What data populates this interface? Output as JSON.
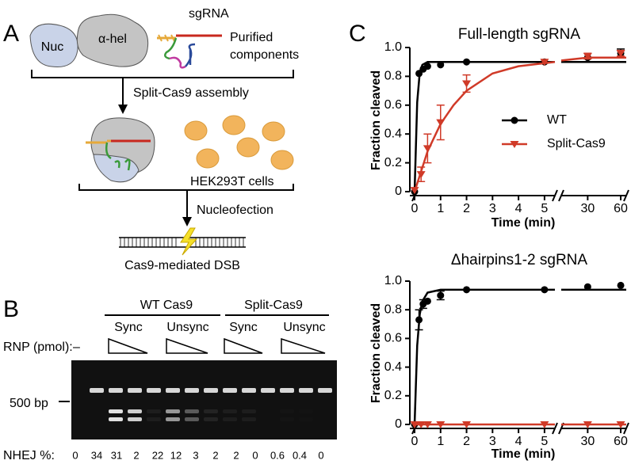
{
  "panel_a": {
    "label": "A",
    "nuc": "Nuc",
    "alpha_hel": "α-hel",
    "sgrna": "sgRNA",
    "purified": [
      "Purified",
      "components"
    ],
    "assembly": "Split-Cas9 assembly",
    "cells": "HEK293T cells",
    "nucleofection": "Nucleofection",
    "dsb": "Cas9-mediated DSB"
  },
  "panel_b": {
    "label": "B",
    "groups": [
      "WT Cas9",
      "Split-Cas9"
    ],
    "subgroups": [
      "Sync",
      "Unsync",
      "Sync",
      "Unsync"
    ],
    "rnp_label": "RNP (pmol):",
    "minus": "–",
    "marker": "500 bp",
    "nhej_label": "NHEJ %:",
    "nhej": [
      0,
      34,
      31,
      2,
      22,
      12,
      3,
      2,
      2,
      0,
      0.6,
      0.4,
      0
    ]
  },
  "panel_c_label": "C",
  "chart_data": [
    {
      "type": "scatter",
      "title": "Full-length sgRNA",
      "x_label": "Time (min)",
      "y_label": "Fraction cleaved",
      "xlim": [
        [
          0,
          5.4
        ],
        [
          6,
          65
        ]
      ],
      "xticks": [
        0,
        1,
        2,
        3,
        4,
        5,
        30,
        60
      ],
      "ylim": [
        0,
        1
      ],
      "yticks": [
        0,
        0.2,
        0.4,
        0.6,
        0.8,
        {
          "value": 1,
          "label": "1.0"
        }
      ],
      "legend": "right",
      "series": [
        {
          "name": "WT",
          "color": "#000000",
          "marker": "circle",
          "x": [
            0,
            0.17,
            0.33,
            0.5,
            1,
            2,
            5,
            30,
            60
          ],
          "values": [
            0,
            0.82,
            0.85,
            0.87,
            0.88,
            0.9,
            0.9,
            0.93,
            0.96
          ],
          "errors": [
            null,
            null,
            null,
            null,
            null,
            null,
            null,
            null,
            0.03
          ],
          "fit_x": [
            0,
            0.1,
            0.2,
            0.3,
            0.5,
            1,
            5.4,
            6,
            65
          ],
          "fit_values": [
            0,
            0.62,
            0.83,
            0.88,
            0.9,
            0.9,
            0.9,
            0.9,
            0.9
          ]
        },
        {
          "name": "Split-Cas9",
          "color": "#d03a28",
          "marker": "triangle-down",
          "x": [
            0,
            0.25,
            0.5,
            1,
            2,
            5,
            30,
            60
          ],
          "values": [
            0.01,
            0.12,
            0.3,
            0.48,
            0.75,
            0.9,
            0.94,
            0.96
          ],
          "errors": [
            null,
            0.05,
            0.1,
            0.12,
            0.06,
            null,
            0.02,
            0.02
          ],
          "fit_x": [
            0,
            0.5,
            1,
            1.5,
            2,
            3,
            4,
            5.4,
            6,
            30,
            65
          ],
          "fit_values": [
            0,
            0.28,
            0.47,
            0.6,
            0.7,
            0.82,
            0.87,
            0.9,
            0.91,
            0.93,
            0.93
          ]
        }
      ]
    },
    {
      "type": "scatter",
      "title": "Δhairpins1-2 sgRNA",
      "x_label": "Time (min)",
      "y_label": "Fraction cleaved",
      "xlim": [
        [
          0,
          5.4
        ],
        [
          6,
          65
        ]
      ],
      "xticks": [
        0,
        1,
        2,
        3,
        4,
        5,
        30,
        60
      ],
      "ylim": [
        0,
        1
      ],
      "yticks": [
        0,
        0.2,
        0.4,
        0.6,
        0.8,
        {
          "value": 1,
          "label": "1.0"
        }
      ],
      "series": [
        {
          "color": "#000000",
          "marker": "circle",
          "x": [
            0,
            0.17,
            0.33,
            0.5,
            1,
            2,
            5,
            30,
            60
          ],
          "values": [
            0,
            0.73,
            0.84,
            0.86,
            0.9,
            0.94,
            0.94,
            0.96,
            0.97
          ],
          "errors": [
            null,
            0.07,
            0.03,
            null,
            0.03,
            null,
            null,
            null,
            null
          ],
          "fit_x": [
            0,
            0.1,
            0.2,
            0.3,
            0.5,
            1,
            2,
            5.4,
            6,
            65
          ],
          "fit_values": [
            0,
            0.55,
            0.77,
            0.86,
            0.92,
            0.94,
            0.94,
            0.94,
            0.94,
            0.94
          ]
        },
        {
          "color": "#d03a28",
          "marker": "triangle-down",
          "x": [
            0,
            0.25,
            0.5,
            1,
            2,
            5,
            30,
            60
          ],
          "values": [
            0,
            0,
            0,
            0,
            0,
            0,
            0,
            0
          ],
          "errors": [
            null,
            null,
            null,
            null,
            null,
            null,
            null,
            null
          ],
          "fit_x": [
            0,
            5.4,
            6,
            65
          ],
          "fit_values": [
            0,
            0,
            0,
            0
          ]
        }
      ]
    }
  ]
}
